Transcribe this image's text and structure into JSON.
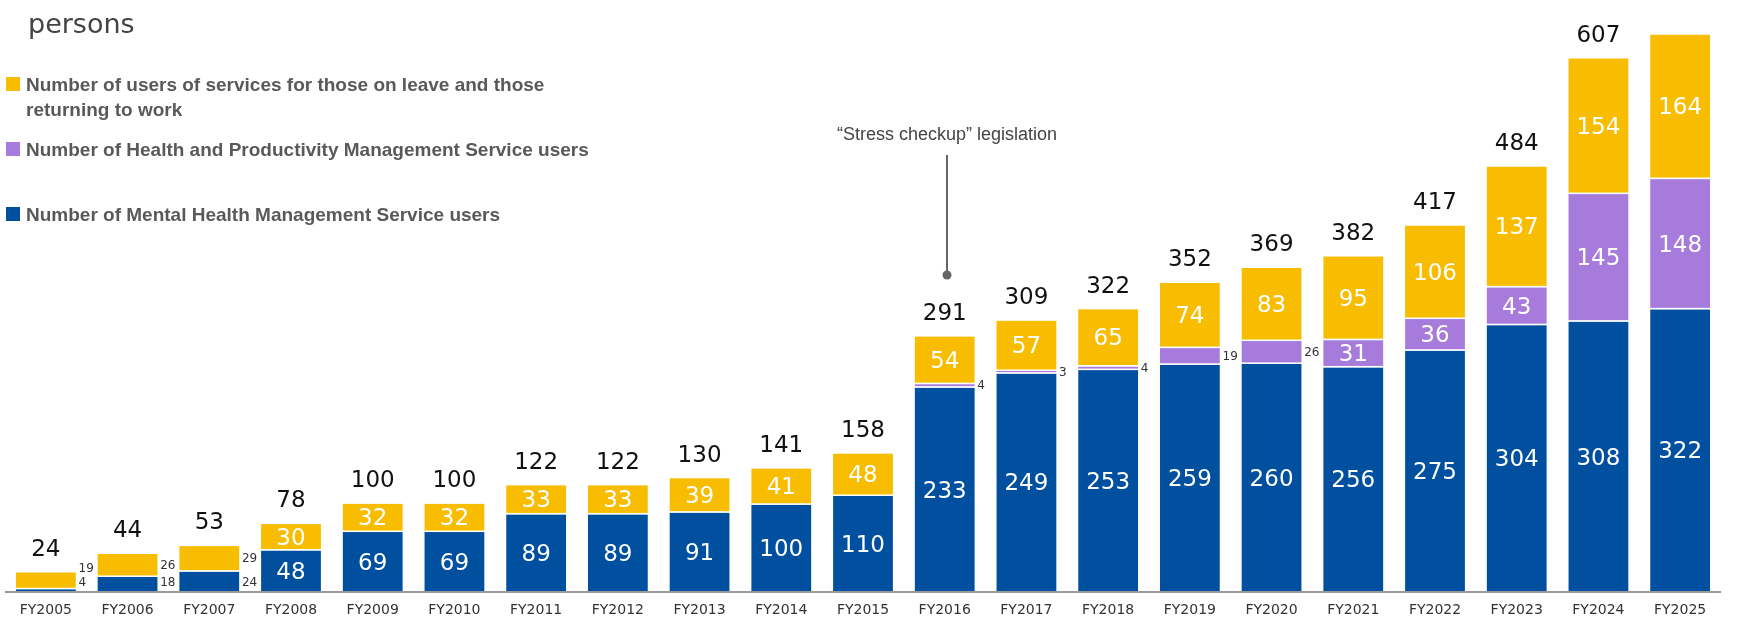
{
  "chart_data": {
    "type": "bar",
    "stacked": true,
    "ylabel": "persons",
    "legend": "top left",
    "data_labels": true,
    "categories": [
      "FY2005",
      "FY2006",
      "FY2007",
      "FY2008",
      "FY2009",
      "FY2010",
      "FY2011",
      "FY2012",
      "FY2013",
      "FY2014",
      "FY2015",
      "FY2016",
      "FY2017",
      "FY2018",
      "FY2019",
      "FY2020",
      "FY2021",
      "FY2022",
      "FY2023",
      "FY2024",
      "FY2025"
    ],
    "series": [
      {
        "name": "Number of Mental Health Management Service users",
        "color": "#00509f",
        "values": [
          4,
          18,
          24,
          48,
          69,
          69,
          89,
          89,
          91,
          100,
          110,
          233,
          249,
          253,
          259,
          260,
          256,
          275,
          304,
          308,
          322
        ]
      },
      {
        "name": "Number of Health and Productivity Management Service users",
        "color": "#a77bdb",
        "values": [
          null,
          null,
          null,
          null,
          null,
          null,
          null,
          null,
          null,
          null,
          null,
          4,
          3,
          4,
          19,
          26,
          31,
          36,
          43,
          145,
          148
        ]
      },
      {
        "name": "Number of users of services for those on leave and those returning to work",
        "color": "#f8bd00",
        "values": [
          19,
          26,
          29,
          30,
          32,
          32,
          33,
          33,
          39,
          41,
          48,
          54,
          57,
          65,
          74,
          83,
          95,
          106,
          137,
          154,
          164
        ]
      }
    ],
    "totals": [
      "24",
      "44",
      "53",
      "78",
      "100",
      "100",
      "122",
      "122",
      "130",
      "141",
      "158",
      "291",
      "309",
      "322",
      "352",
      "369",
      "382",
      "417",
      "484",
      "607",
      null
    ],
    "annotations": [
      "“Stress checkup” legislation"
    ]
  }
}
